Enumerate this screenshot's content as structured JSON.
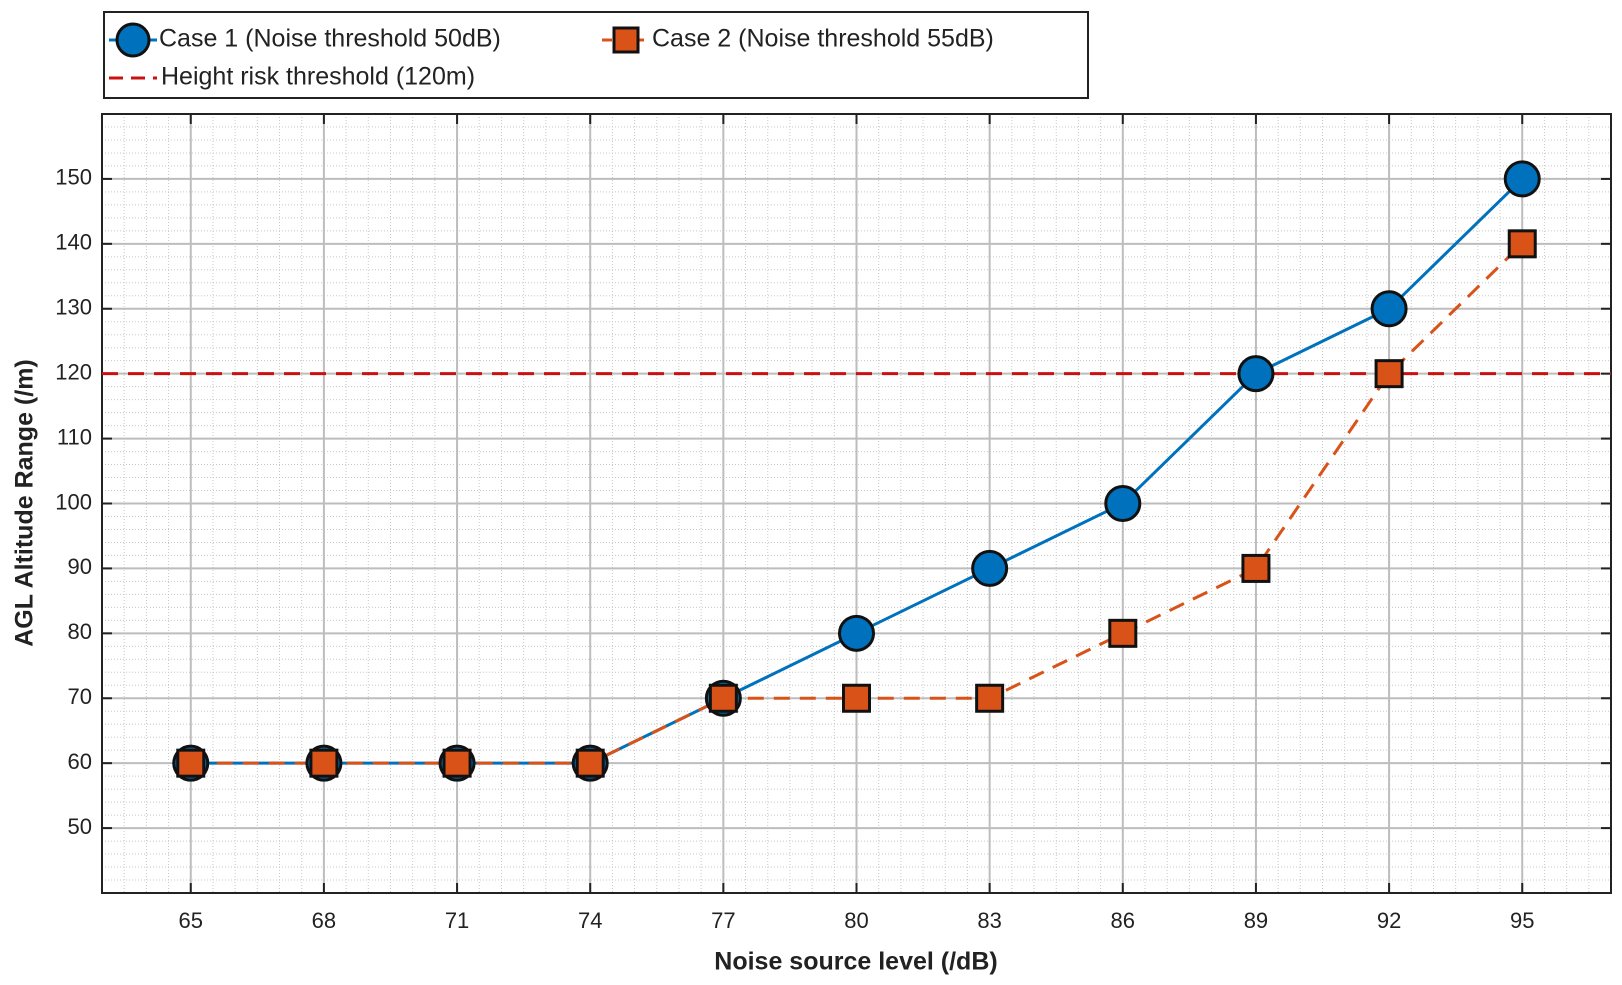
{
  "chart_data": {
    "type": "line",
    "x_label": "Noise source level (/dB)",
    "y_label": "AGL Altitude Range (/m)",
    "x": [
      65,
      68,
      71,
      74,
      77,
      80,
      83,
      86,
      89,
      92,
      95
    ],
    "series": [
      {
        "name": "Case 1 (Noise threshold 50dB)",
        "color": "#0072bd",
        "marker": "circle",
        "dashed": false,
        "values": [
          60,
          60,
          60,
          60,
          70,
          80,
          90,
          100,
          120,
          130,
          150
        ]
      },
      {
        "name": "Case 2 (Noise threshold 55dB)",
        "color": "#d95319",
        "marker": "square",
        "dashed": true,
        "values": [
          60,
          60,
          60,
          60,
          70,
          70,
          70,
          80,
          90,
          120,
          140
        ]
      }
    ],
    "reference_lines": [
      {
        "name": "Height risk threshold (120m)",
        "value": 120,
        "color": "#cc1010"
      }
    ],
    "xlim": [
      63,
      97
    ],
    "xticks": [
      65,
      68,
      71,
      74,
      77,
      80,
      83,
      86,
      89,
      92,
      95
    ],
    "ylim": [
      40,
      160
    ],
    "yticks": [
      50,
      60,
      70,
      80,
      90,
      100,
      110,
      120,
      130,
      140,
      150
    ],
    "grid": true,
    "minor_grid": true,
    "legend": "top-left-outside"
  }
}
